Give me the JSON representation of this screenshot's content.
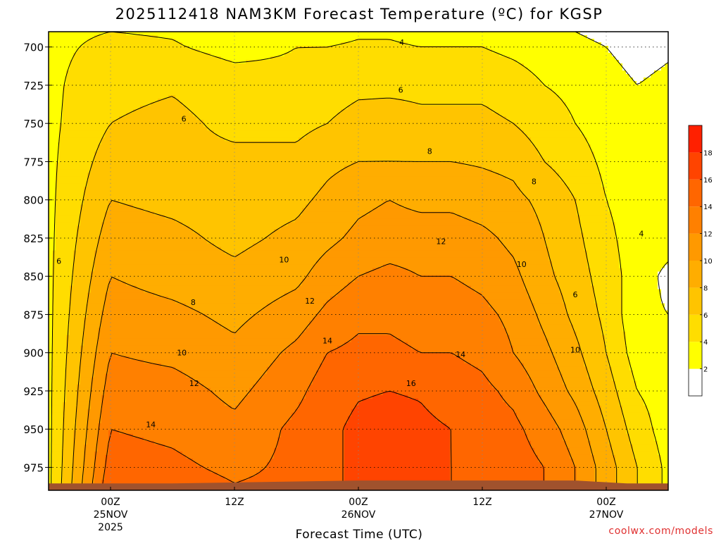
{
  "chart_data": {
    "type": "heatmap",
    "title": "2025112418 NAM3KM Forecast Temperature (ºC) for KGSP",
    "xlabel": "Forecast Time (UTC)",
    "ylabel": "",
    "credit": "coolwx.com/models",
    "x_unit": "hours",
    "xlim": [
      0,
      60
    ],
    "ylim": [
      990,
      690
    ],
    "x_ticks": [
      {
        "x": 6,
        "lines": [
          "00Z",
          "25NOV",
          "2025"
        ]
      },
      {
        "x": 18,
        "lines": [
          "12Z"
        ]
      },
      {
        "x": 30,
        "lines": [
          "00Z",
          "26NOV"
        ]
      },
      {
        "x": 42,
        "lines": [
          "12Z"
        ]
      },
      {
        "x": 54,
        "lines": [
          "00Z",
          "27NOV"
        ]
      }
    ],
    "y_ticks": [
      700,
      725,
      750,
      775,
      800,
      825,
      850,
      875,
      900,
      925,
      950,
      975
    ],
    "grid": true,
    "colorbar": {
      "levels": [
        0,
        2,
        4,
        6,
        8,
        10,
        12,
        14,
        16,
        18,
        20
      ],
      "labels": [
        "2",
        "4",
        "6",
        "8",
        "10",
        "12",
        "14",
        "16",
        "18"
      ],
      "colors": [
        "#ffffff",
        "#ffff00",
        "#ffdd00",
        "#ffc400",
        "#ffad00",
        "#ff9900",
        "#ff8000",
        "#ff6600",
        "#ff4400",
        "#ff2000"
      ]
    },
    "ground_color": "#a0522d",
    "forecast_hours": [
      0,
      6,
      12,
      18,
      24,
      27,
      30,
      33,
      36,
      39,
      42,
      45,
      48,
      51,
      54,
      57,
      60
    ],
    "pressure_levels": [
      690,
      700,
      725,
      750,
      775,
      800,
      825,
      850,
      875,
      900,
      925,
      950,
      975,
      985
    ],
    "temperature_grid": [
      [
        3.5,
        3.5,
        3.5,
        3.5,
        3.5,
        3.5,
        3.5,
        3.5,
        3.5,
        3.5,
        3.5,
        3.5,
        3.5,
        3.5
      ],
      [
        4.0,
        4.5,
        5.5,
        6.0,
        7.0,
        8.0,
        9.0,
        10.0,
        11.0,
        12.0,
        13.0,
        14.0,
        15.0,
        15.5
      ],
      [
        3.8,
        4.2,
        5.8,
        6.5,
        6.5,
        7.5,
        8.5,
        9.2,
        10.5,
        11.5,
        12.8,
        13.5,
        14.5,
        15.0
      ],
      [
        3.0,
        3.3,
        5.0,
        5.5,
        6.5,
        7.0,
        7.5,
        8.5,
        9.5,
        10.5,
        11.5,
        12.5,
        13.5,
        14.0
      ],
      [
        3.5,
        4.0,
        4.5,
        5.5,
        6.5,
        7.5,
        8.5,
        9.5,
        11.0,
        12.5,
        13.5,
        14.5,
        14.5,
        14.5
      ],
      [
        3.5,
        4.0,
        5.0,
        6.0,
        7.5,
        8.5,
        9.5,
        11.0,
        12.5,
        14.0,
        15.0,
        15.5,
        15.5,
        15.5
      ],
      [
        3.8,
        4.2,
        5.5,
        6.8,
        8.0,
        9.5,
        10.5,
        12.0,
        13.5,
        14.5,
        15.8,
        16.5,
        16.5,
        16.5
      ],
      [
        3.8,
        4.2,
        5.5,
        7.0,
        8.0,
        10.0,
        11.0,
        12.5,
        13.5,
        14.5,
        16.0,
        16.8,
        16.8,
        16.8
      ],
      [
        3.5,
        4.0,
        5.5,
        6.5,
        8.0,
        9.5,
        11.0,
        12.0,
        13.0,
        14.0,
        15.8,
        16.5,
        16.5,
        16.5
      ],
      [
        3.5,
        4.0,
        5.5,
        6.5,
        8.0,
        9.5,
        11.0,
        12.0,
        13.0,
        14.0,
        15.0,
        16.0,
        16.0,
        16.0
      ],
      [
        3.5,
        4.0,
        5.5,
        6.5,
        7.8,
        9.0,
        10.5,
        11.5,
        12.5,
        13.5,
        14.5,
        15.0,
        15.5,
        15.5
      ],
      [
        3.0,
        3.5,
        5.0,
        6.0,
        7.5,
        8.5,
        9.5,
        10.5,
        11.5,
        12.0,
        13.5,
        14.5,
        15.0,
        15.0
      ],
      [
        2.5,
        3.0,
        4.0,
        5.0,
        6.0,
        7.5,
        8.0,
        8.5,
        9.5,
        10.5,
        11.5,
        13.0,
        14.0,
        14.0
      ],
      [
        2.0,
        2.5,
        3.5,
        4.0,
        5.0,
        6.0,
        6.5,
        7.0,
        7.5,
        8.5,
        9.5,
        11.0,
        12.0,
        12.0
      ],
      [
        1.5,
        2.0,
        2.5,
        3.0,
        3.5,
        4.0,
        4.5,
        5.0,
        5.5,
        6.0,
        7.0,
        8.0,
        9.0,
        9.0
      ],
      [
        1.0,
        1.5,
        2.0,
        2.5,
        3.0,
        3.0,
        3.0,
        3.0,
        2.5,
        3.0,
        4.0,
        5.0,
        6.0,
        6.0
      ],
      [
        1.5,
        1.8,
        2.3,
        2.6,
        2.8,
        3.0,
        2.8,
        1.5,
        2.0,
        2.5,
        3.0,
        3.0,
        3.5,
        3.5
      ]
    ],
    "contour_labels": [
      {
        "text": "4",
        "x": 34.2,
        "p": 697
      },
      {
        "text": "6",
        "x": 34.1,
        "p": 728
      },
      {
        "text": "6",
        "x": 13.1,
        "p": 747
      },
      {
        "text": "8",
        "x": 36.9,
        "p": 768
      },
      {
        "text": "8",
        "x": 47.0,
        "p": 788
      },
      {
        "text": "4",
        "x": 57.4,
        "p": 822
      },
      {
        "text": "6",
        "x": 1.0,
        "p": 840
      },
      {
        "text": "10",
        "x": 22.8,
        "p": 839
      },
      {
        "text": "12",
        "x": 38.0,
        "p": 827
      },
      {
        "text": "10",
        "x": 45.8,
        "p": 842
      },
      {
        "text": "6",
        "x": 51.0,
        "p": 862
      },
      {
        "text": "8",
        "x": 14.0,
        "p": 867
      },
      {
        "text": "12",
        "x": 25.3,
        "p": 866
      },
      {
        "text": "14",
        "x": 27.0,
        "p": 892
      },
      {
        "text": "14",
        "x": 39.9,
        "p": 901
      },
      {
        "text": "10",
        "x": 12.9,
        "p": 900
      },
      {
        "text": "10",
        "x": 51.0,
        "p": 898
      },
      {
        "text": "16",
        "x": 35.1,
        "p": 920
      },
      {
        "text": "12",
        "x": 14.1,
        "p": 920
      },
      {
        "text": "14",
        "x": 9.9,
        "p": 947
      }
    ]
  }
}
